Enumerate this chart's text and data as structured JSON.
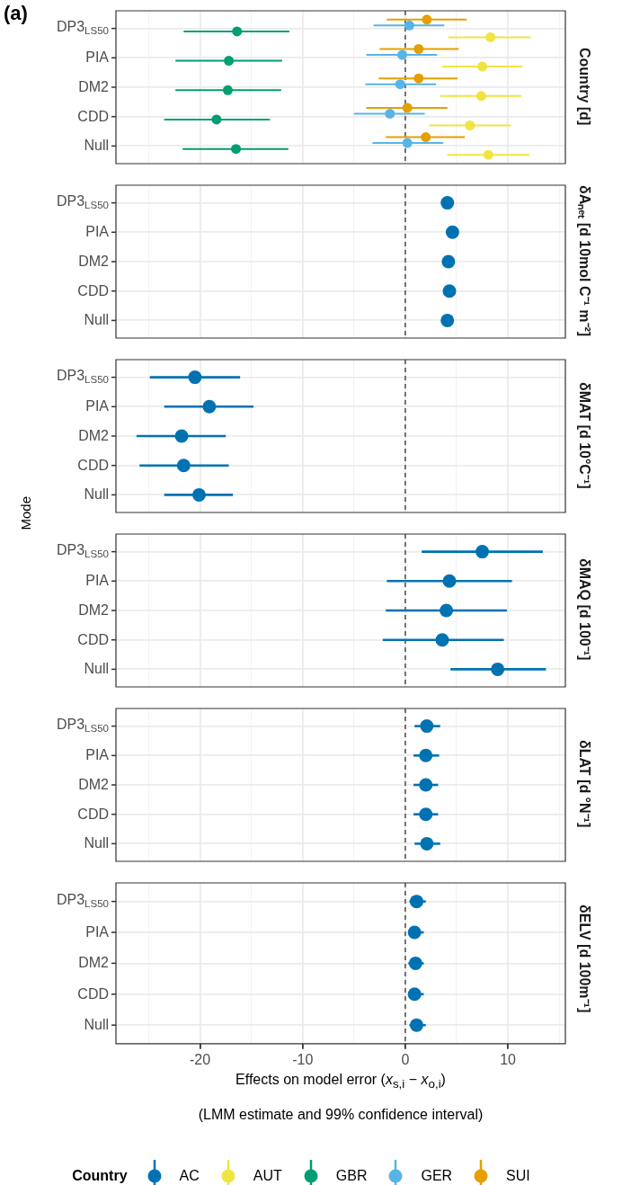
{
  "chart_data": [
    {
      "type": "scatter",
      "orientation": "horizontal",
      "y2label": "Country [d]",
      "annotations": [
        "(a)"
      ],
      "categories": [
        "DP3$_{LS50}$",
        "PIA",
        "DM2",
        "CDD",
        "Null"
      ],
      "xlim": [
        -28.2,
        15.6
      ],
      "xticks": [
        {
          "value": -25,
          "label": null
        },
        -20,
        {
          "value": -15,
          "label": null
        },
        -10,
        {
          "value": -5,
          "label": null
        },
        0,
        {
          "value": 5,
          "label": null
        },
        10,
        {
          "value": 15,
          "label": null
        }
      ],
      "grid": true,
      "tick_labels": "y",
      "marker": "circle",
      "legend": false,
      "ref_lines": [
        {
          "axis": "x",
          "value": 0,
          "line_style": "dashed",
          "color": "#333333"
        }
      ],
      "series": [
        {
          "name": "AUT",
          "color": "#f0e442",
          "values": [
            8.3,
            7.5,
            7.4,
            6.3,
            8.1
          ],
          "errors": [
            [
              4.2,
              12.2
            ],
            [
              3.6,
              11.4
            ],
            [
              3.4,
              11.3
            ],
            [
              2.3,
              10.3
            ],
            [
              4.1,
              12.1
            ]
          ]
        },
        {
          "name": "GBR",
          "color": "#009e73",
          "values": [
            -16.4,
            -17.2,
            -17.3,
            -18.4,
            -16.5
          ],
          "errors": [
            [
              -21.6,
              -11.3
            ],
            [
              -22.4,
              -12.0
            ],
            [
              -22.4,
              -12.1
            ],
            [
              -23.5,
              -13.2
            ],
            [
              -21.7,
              -11.4
            ]
          ]
        },
        {
          "name": "GER",
          "color": "#56b4e9",
          "values": [
            0.4,
            -0.3,
            -0.5,
            -1.5,
            0.2
          ],
          "errors": [
            [
              -3.1,
              3.8
            ],
            [
              -3.8,
              3.1
            ],
            [
              -3.9,
              3.0
            ],
            [
              -5.0,
              1.9
            ],
            [
              -3.2,
              3.7
            ]
          ]
        },
        {
          "name": "SUI",
          "color": "#e69f00",
          "values": [
            2.1,
            1.3,
            1.3,
            0.2,
            2.0
          ],
          "errors": [
            [
              -1.8,
              6.0
            ],
            [
              -2.5,
              5.2
            ],
            [
              -2.6,
              5.1
            ],
            [
              -3.8,
              4.1
            ],
            [
              -1.9,
              5.8
            ]
          ]
        }
      ]
    },
    {
      "type": "scatter",
      "orientation": "horizontal",
      "y2label": "δAₙₑₜ [d 10mol C⁻¹ m⁻²]",
      "categories": [
        "DP3$_{LS50}$",
        "PIA",
        "DM2",
        "CDD",
        "Null"
      ],
      "xlim": [
        -28.2,
        15.6
      ],
      "xticks": [
        {
          "value": -25,
          "label": null
        },
        -20,
        {
          "value": -15,
          "label": null
        },
        -10,
        {
          "value": -5,
          "label": null
        },
        0,
        {
          "value": 5,
          "label": null
        },
        10,
        {
          "value": 15,
          "label": null
        }
      ],
      "grid": true,
      "tick_labels": "y",
      "marker": "circle",
      "legend": false,
      "ref_lines": [
        {
          "axis": "x",
          "value": 0,
          "line_style": "dashed",
          "color": "#333333"
        }
      ],
      "series": [
        {
          "color": "#0072b2",
          "values": [
            4.1,
            4.6,
            4.2,
            4.3,
            4.1
          ]
        }
      ]
    },
    {
      "type": "scatter",
      "orientation": "horizontal",
      "y2label": "δMAT [d 10°C⁻¹]",
      "categories": [
        "DP3$_{LS50}$",
        "PIA",
        "DM2",
        "CDD",
        "Null"
      ],
      "xlim": [
        -28.2,
        15.6
      ],
      "xticks": [
        {
          "value": -25,
          "label": null
        },
        -20,
        {
          "value": -15,
          "label": null
        },
        -10,
        {
          "value": -5,
          "label": null
        },
        0,
        {
          "value": 5,
          "label": null
        },
        10,
        {
          "value": 15,
          "label": null
        }
      ],
      "grid": true,
      "tick_labels": "y",
      "marker": "circle",
      "legend": false,
      "ref_lines": [
        {
          "axis": "x",
          "value": 0,
          "line_style": "dashed",
          "color": "#333333"
        }
      ],
      "series": [
        {
          "color": "#0072b2",
          "values": [
            -20.5,
            -19.1,
            -21.8,
            -21.6,
            -20.1
          ],
          "errors": [
            [
              -24.9,
              -16.1
            ],
            [
              -23.5,
              -14.8
            ],
            [
              -26.2,
              -17.5
            ],
            [
              -25.9,
              -17.2
            ],
            [
              -23.5,
              -16.8
            ]
          ]
        }
      ]
    },
    {
      "type": "scatter",
      "orientation": "horizontal",
      "y2label": "δMAQ [d 100⁻¹]",
      "ylabel": "Mode",
      "categories": [
        "DP3$_{LS50}$",
        "PIA",
        "DM2",
        "CDD",
        "Null"
      ],
      "xlim": [
        -28.2,
        15.6
      ],
      "xticks": [
        {
          "value": -25,
          "label": null
        },
        -20,
        {
          "value": -15,
          "label": null
        },
        -10,
        {
          "value": -5,
          "label": null
        },
        0,
        {
          "value": 5,
          "label": null
        },
        10,
        {
          "value": 15,
          "label": null
        }
      ],
      "grid": true,
      "tick_labels": "y",
      "marker": "circle",
      "legend": false,
      "ref_lines": [
        {
          "axis": "x",
          "value": 0,
          "line_style": "dashed",
          "color": "#333333"
        }
      ],
      "series": [
        {
          "color": "#0072b2",
          "values": [
            7.5,
            4.3,
            4.0,
            3.6,
            9.0
          ],
          "errors": [
            [
              1.6,
              13.4
            ],
            [
              -1.8,
              10.4
            ],
            [
              -1.9,
              9.9
            ],
            [
              -2.2,
              9.6
            ],
            [
              4.4,
              13.7
            ]
          ]
        }
      ]
    },
    {
      "type": "scatter",
      "orientation": "horizontal",
      "y2label": "δLAT [d °N⁻¹]",
      "categories": [
        "DP3$_{LS50}$",
        "PIA",
        "DM2",
        "CDD",
        "Null"
      ],
      "xlim": [
        -28.2,
        15.6
      ],
      "xticks": [
        {
          "value": -25,
          "label": null
        },
        -20,
        {
          "value": -15,
          "label": null
        },
        -10,
        {
          "value": -5,
          "label": null
        },
        0,
        {
          "value": 5,
          "label": null
        },
        10,
        {
          "value": 15,
          "label": null
        }
      ],
      "grid": true,
      "tick_labels": "y",
      "marker": "circle",
      "legend": false,
      "ref_lines": [
        {
          "axis": "x",
          "value": 0,
          "line_style": "dashed",
          "color": "#333333"
        }
      ],
      "series": [
        {
          "color": "#0072b2",
          "values": [
            2.1,
            2.0,
            2.0,
            2.0,
            2.1
          ],
          "errors": [
            [
              0.9,
              3.4
            ],
            [
              0.8,
              3.3
            ],
            [
              0.8,
              3.2
            ],
            [
              0.8,
              3.2
            ],
            [
              0.9,
              3.4
            ]
          ]
        }
      ]
    },
    {
      "type": "scatter",
      "orientation": "horizontal",
      "y2label": "δELV [d 100m⁻¹]",
      "xlabel": "Effects on model error (x$_{s,i}$ − x$_{o,i}$)",
      "annotations": [
        "(LMM estimate and 99% confidence interval)"
      ],
      "legend_title": "Country",
      "categories": [
        "DP3$_{LS50}$",
        "PIA",
        "DM2",
        "CDD",
        "Null"
      ],
      "xlim": [
        -28.2,
        15.6
      ],
      "xticks": [
        {
          "value": -25,
          "label": null
        },
        -20,
        {
          "value": -15,
          "label": null
        },
        -10,
        {
          "value": -5,
          "label": null
        },
        0,
        {
          "value": 5,
          "label": null
        },
        10,
        {
          "value": 15,
          "label": null
        }
      ],
      "grid": true,
      "marker": "circle",
      "legend": "bottom",
      "ref_lines": [
        {
          "axis": "x",
          "value": 0,
          "line_style": "dashed",
          "color": "#333333"
        }
      ],
      "series": [
        {
          "name": "AC",
          "color": "#0072b2",
          "values": [
            1.1,
            0.9,
            1.0,
            0.9,
            1.1
          ],
          "errors": [
            [
              0.4,
              2.0
            ],
            [
              0.3,
              1.8
            ],
            [
              0.3,
              1.8
            ],
            [
              0.3,
              1.8
            ],
            [
              0.4,
              2.0
            ]
          ]
        }
      ]
    }
  ]
}
